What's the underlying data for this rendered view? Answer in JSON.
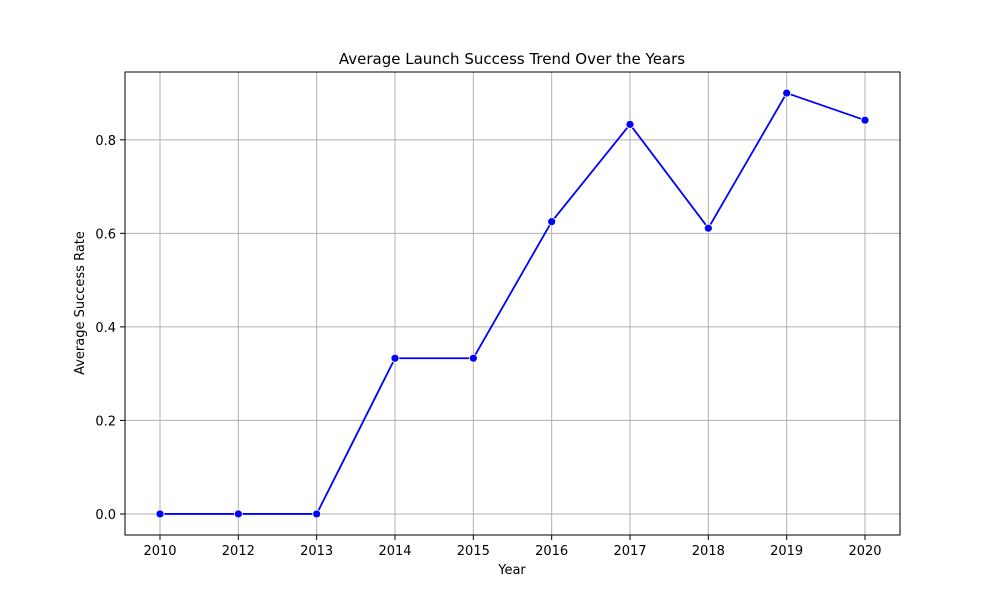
{
  "chart_data": {
    "type": "line",
    "title": "Average Launch Success Trend Over the Years",
    "xlabel": "Year",
    "ylabel": "Average Success Rate",
    "categories": [
      "2010",
      "2012",
      "2013",
      "2014",
      "2015",
      "2016",
      "2017",
      "2018",
      "2019",
      "2020"
    ],
    "series": [
      {
        "values": [
          0.0,
          0.0,
          0.0,
          0.333,
          0.333,
          0.625,
          0.833,
          0.611,
          0.9,
          0.842
        ]
      }
    ],
    "y_ticks": [
      "0.0",
      "0.2",
      "0.4",
      "0.6",
      "0.8"
    ],
    "ylim": [
      -0.045,
      0.945
    ],
    "grid": true,
    "legend": false,
    "colors": {
      "line": "#0000ff",
      "marker": "#0000ff",
      "grid": "#b0b0b0",
      "axes": "#000000"
    }
  }
}
